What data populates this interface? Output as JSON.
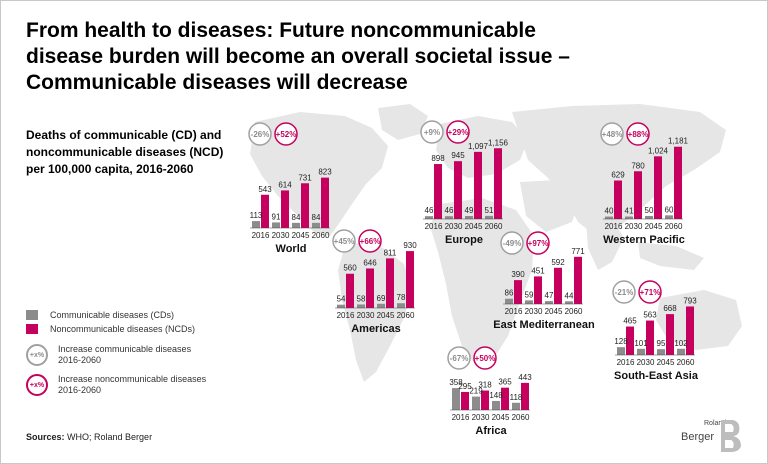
{
  "title": {
    "line1": "From health to diseases: Future noncommunicable",
    "line2": "disease burden will become an overall societal issue –",
    "line3": "Communicable diseases will decrease"
  },
  "subtitle": {
    "line1": "Deaths of communicable (CD) and",
    "line2": "noncommunicable diseases (NCD)",
    "line3": "per 100,000 capita, 2016-2060"
  },
  "legend": {
    "cd_label": "Communicable diseases (CDs)",
    "ncd_label": "Noncommunicable diseases (NCDs)",
    "badge_symbol": "+x%",
    "cd_increase_line1": "Increase communicable diseases",
    "cd_increase_line2": "2016-2060",
    "ncd_increase_line1": "Increase noncommunicable diseases",
    "ncd_increase_line2": "2016-2060"
  },
  "colors": {
    "cd": "#8c8c8c",
    "ncd": "#c6005e",
    "map": "#e6e6e6"
  },
  "source": {
    "label": "Sources:",
    "text": "WHO; Roland Berger"
  },
  "logo": {
    "small": "Roland",
    "big": "Berger"
  },
  "chart_data": {
    "type": "bar",
    "unit": "deaths per 100,000 capita",
    "categories": [
      "2016",
      "2030",
      "2045",
      "2060"
    ],
    "regions": [
      {
        "name": "World",
        "cd": [
          113,
          91,
          84,
          84
        ],
        "ncd": [
          543,
          614,
          731,
          823
        ],
        "cd_change": "-26%",
        "ncd_change": "+52%"
      },
      {
        "name": "Europe",
        "cd": [
          46,
          46,
          49,
          51
        ],
        "ncd": [
          898,
          945,
          1097,
          1156
        ],
        "cd_label_values": [
          "46",
          "46",
          "49",
          "51"
        ],
        "ncd_label_values": [
          "898",
          "945",
          "1,097",
          "1,156"
        ],
        "cd_change": "+9%",
        "ncd_change": "+29%"
      },
      {
        "name": "Western Pacific",
        "cd": [
          40,
          41,
          50,
          60
        ],
        "ncd": [
          629,
          780,
          1024,
          1181
        ],
        "ncd_label_values": [
          "629",
          "780",
          "1,024",
          "1,181"
        ],
        "cd_change": "+48%",
        "ncd_change": "+88%"
      },
      {
        "name": "Americas",
        "cd": [
          54,
          58,
          69,
          78
        ],
        "ncd": [
          560,
          646,
          811,
          930
        ],
        "cd_change": "+45%",
        "ncd_change": "+66%"
      },
      {
        "name": "East Mediterranean",
        "cd": [
          86,
          59,
          47,
          44
        ],
        "ncd": [
          390,
          451,
          592,
          771
        ],
        "cd_change": "-49%",
        "ncd_change": "+97%"
      },
      {
        "name": "South-East Asia",
        "cd": [
          128,
          101,
          95,
          102
        ],
        "ncd": [
          465,
          563,
          668,
          793
        ],
        "cd_change": "-21%",
        "ncd_change": "+71%"
      },
      {
        "name": "Africa",
        "cd": [
          358,
          219,
          148,
          118
        ],
        "ncd": [
          295,
          318,
          365,
          443
        ],
        "cd_change": "-67%",
        "ncd_change": "+50%"
      }
    ]
  }
}
